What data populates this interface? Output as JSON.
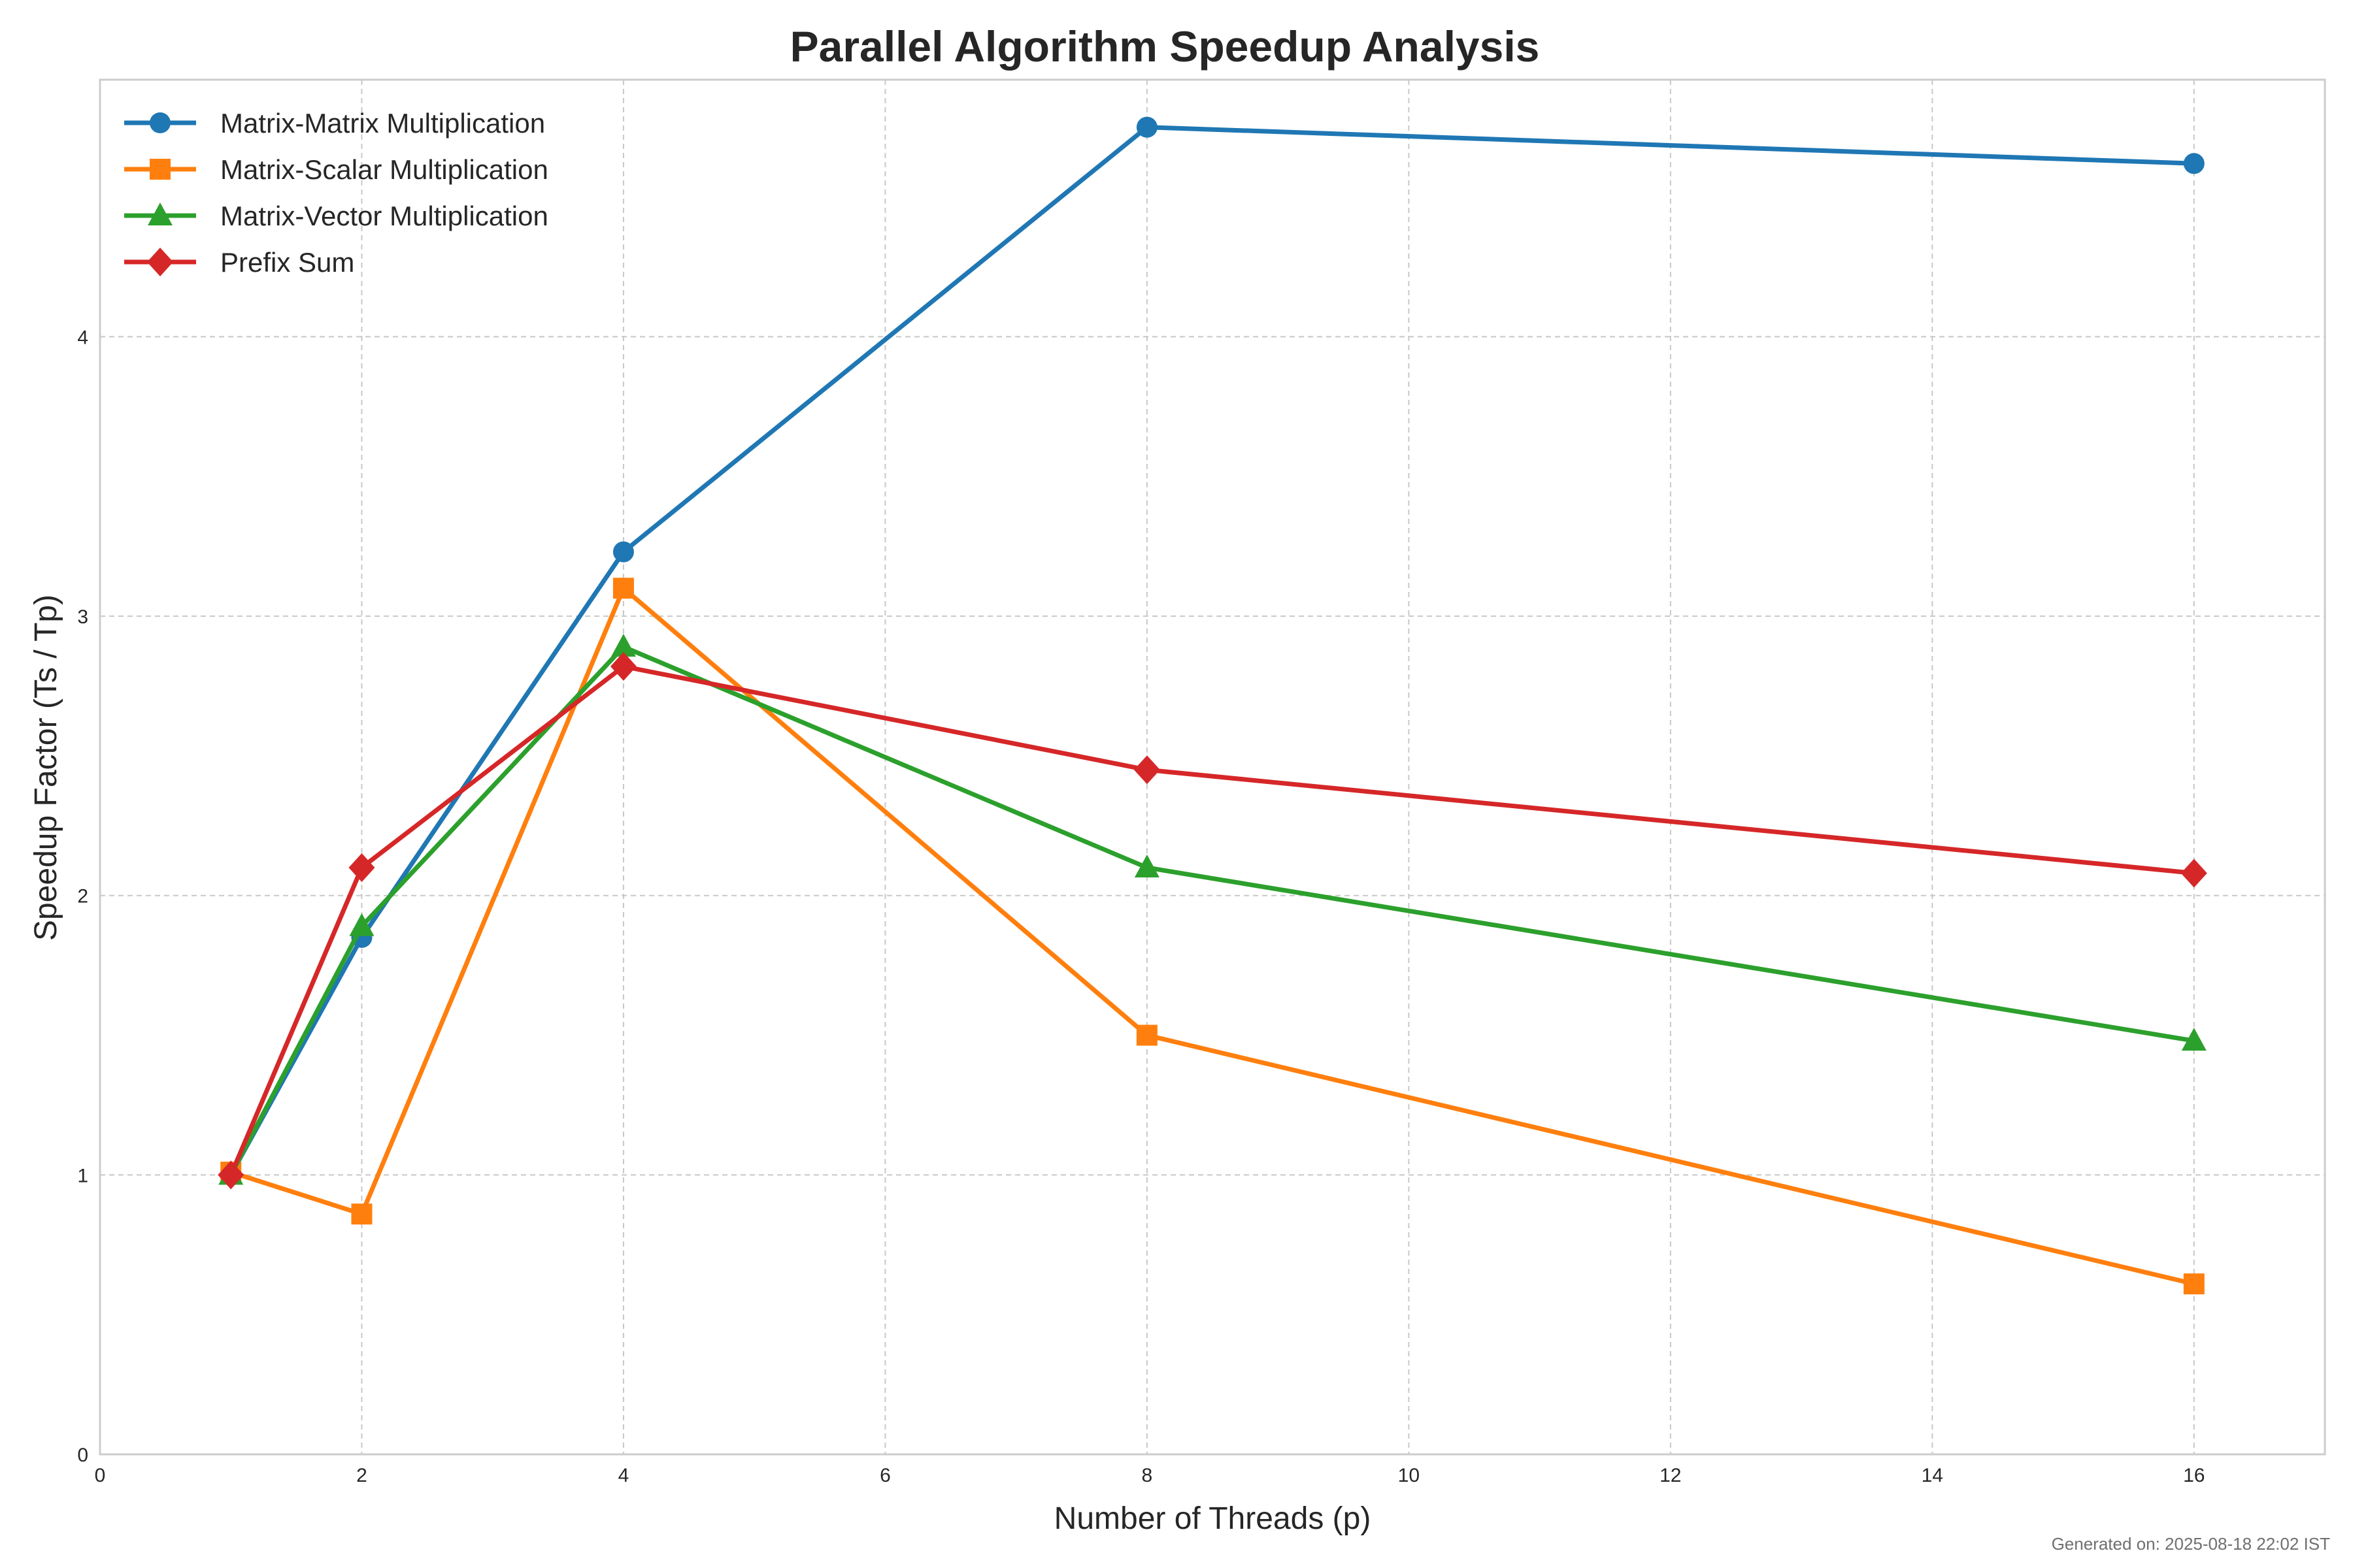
{
  "chart_data": {
    "type": "line",
    "title": "Parallel Algorithm Speedup Analysis",
    "xlabel": "Number of Threads (p)",
    "ylabel": "Speedup Factor (Ts / Tp)",
    "xlim": [
      0,
      17
    ],
    "ylim": [
      0,
      4.92
    ],
    "xticks": [
      0,
      2,
      4,
      6,
      8,
      10,
      12,
      14,
      16
    ],
    "yticks": [
      0,
      1,
      2,
      3,
      4
    ],
    "grid": true,
    "legend_position": "top-left",
    "x": [
      1,
      2,
      4,
      8,
      16
    ],
    "series": [
      {
        "name": "Matrix-Matrix Multiplication",
        "color": "#1f77b4",
        "marker": "circle",
        "values": [
          1.0,
          1.85,
          3.23,
          4.75,
          4.62
        ]
      },
      {
        "name": "Matrix-Scalar Multiplication",
        "color": "#ff7f0e",
        "marker": "square",
        "values": [
          1.01,
          0.86,
          3.1,
          1.5,
          0.61
        ]
      },
      {
        "name": "Matrix-Vector Multiplication",
        "color": "#2ca02c",
        "marker": "triangle",
        "values": [
          1.0,
          1.89,
          2.89,
          2.1,
          1.48
        ]
      },
      {
        "name": "Prefix Sum",
        "color": "#d62728",
        "marker": "diamond",
        "values": [
          1.0,
          2.1,
          2.82,
          2.45,
          2.08
        ]
      }
    ]
  },
  "footnote": "Generated on: 2025-08-18 22:02 IST"
}
